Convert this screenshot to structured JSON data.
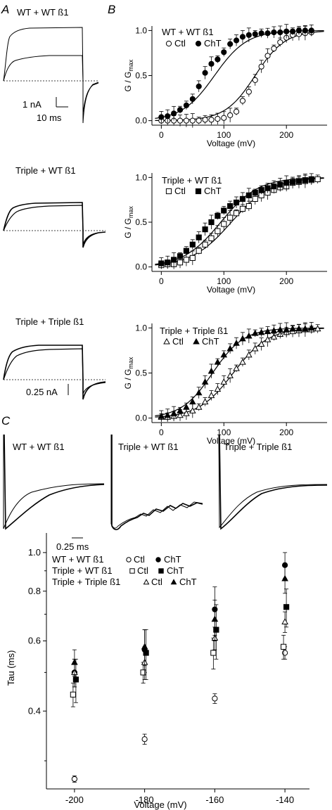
{
  "panel_labels": {
    "a": "A",
    "b": "B",
    "c": "C"
  },
  "traces_a": {
    "titles": [
      "WT + WT ß1",
      "Triple + WT ß1",
      "Triple + Triple ß1"
    ],
    "scale_current_1": "1 nA",
    "scale_time": "10 ms",
    "scale_current_2": "0.25 nA"
  },
  "traces_c": {
    "titles": [
      "WT + WT ß1",
      "Triple + WT ß1",
      "Triple + Triple ß1"
    ],
    "scale_time": "0.25 ms"
  },
  "legend_c": {
    "rows": [
      {
        "label": "WT + WT ß1",
        "ctl": "Ctl",
        "cht": "ChT"
      },
      {
        "label": "Triple + WT ß1",
        "ctl": "Ctl",
        "cht": "ChT"
      },
      {
        "label": "Triple + Triple ß1",
        "ctl": "Ctl",
        "cht": "ChT"
      }
    ]
  },
  "chart_data": [
    {
      "type": "scatter",
      "panel": "B1",
      "legend_title": "WT + WT ß1",
      "xlabel": "Voltage (mV)",
      "ylabel_main": "G / G",
      "ylabel_sub": "max",
      "xlim": [
        -15,
        265
      ],
      "ylim": [
        -0.05,
        1.05
      ],
      "xticks": [
        0,
        100,
        200
      ],
      "yticks": [
        0.0,
        0.5,
        1.0
      ],
      "marker": "circle",
      "series": [
        {
          "name": "Ctl",
          "fill": "open",
          "v_half": 150,
          "slope": 24,
          "x": [
            0,
            10,
            20,
            30,
            40,
            50,
            60,
            70,
            80,
            90,
            100,
            110,
            120,
            130,
            140,
            150,
            160,
            170,
            180,
            190,
            200,
            210,
            220,
            230,
            240
          ],
          "y": [
            0.0,
            0.0,
            0.0,
            0.0,
            0.0,
            0.0,
            0.0,
            0.01,
            0.01,
            0.02,
            0.03,
            0.06,
            0.1,
            0.22,
            0.32,
            0.45,
            0.6,
            0.72,
            0.8,
            0.87,
            0.92,
            0.95,
            0.96,
            0.97,
            0.98
          ]
        },
        {
          "name": "ChT",
          "fill": "filled",
          "v_half": 85,
          "slope": 26,
          "x": [
            0,
            10,
            20,
            30,
            40,
            50,
            60,
            70,
            80,
            90,
            100,
            110,
            120,
            130,
            140,
            150,
            160,
            170,
            180,
            190,
            200,
            210,
            220,
            230,
            240
          ],
          "y": [
            0.04,
            0.05,
            0.08,
            0.12,
            0.17,
            0.24,
            0.38,
            0.53,
            0.63,
            0.68,
            0.76,
            0.85,
            0.89,
            0.93,
            0.95,
            0.96,
            0.97,
            0.97,
            0.98,
            0.98,
            0.99,
            0.99,
            1.0,
            1.0,
            1.0
          ]
        }
      ]
    },
    {
      "type": "scatter",
      "panel": "B2",
      "legend_title": "Triple + WT ß1",
      "xlabel": "Voltage (mV)",
      "ylabel_main": "G / G",
      "ylabel_sub": "max",
      "xlim": [
        -15,
        265
      ],
      "ylim": [
        -0.05,
        1.05
      ],
      "xticks": [
        0,
        100,
        200
      ],
      "yticks": [
        0.0,
        0.5,
        1.0
      ],
      "marker": "square",
      "series": [
        {
          "name": "Ctl",
          "fill": "open",
          "v_half": 112,
          "slope": 32,
          "x": [
            0,
            10,
            20,
            30,
            40,
            50,
            60,
            70,
            80,
            90,
            100,
            110,
            120,
            130,
            140,
            150,
            160,
            170,
            180,
            190,
            200,
            210,
            220,
            230,
            240,
            250
          ],
          "y": [
            0.02,
            0.03,
            0.03,
            0.05,
            0.08,
            0.1,
            0.18,
            0.25,
            0.32,
            0.4,
            0.48,
            0.55,
            0.6,
            0.65,
            0.68,
            0.76,
            0.8,
            0.83,
            0.86,
            0.89,
            0.9,
            0.94,
            0.95,
            0.96,
            0.97,
            0.98
          ]
        },
        {
          "name": "ChT",
          "fill": "filled",
          "v_half": 95,
          "slope": 30,
          "x": [
            0,
            10,
            20,
            30,
            40,
            50,
            60,
            70,
            80,
            90,
            100,
            110,
            120,
            130,
            140,
            150,
            160,
            170,
            180,
            190,
            200,
            210,
            220,
            230,
            240
          ],
          "y": [
            0.04,
            0.05,
            0.08,
            0.12,
            0.18,
            0.25,
            0.33,
            0.42,
            0.5,
            0.57,
            0.63,
            0.68,
            0.72,
            0.76,
            0.8,
            0.83,
            0.86,
            0.88,
            0.9,
            0.92,
            0.94,
            0.95,
            0.96,
            0.97,
            0.98
          ]
        }
      ]
    },
    {
      "type": "scatter",
      "panel": "B3",
      "legend_title": "Triple + Triple ß1",
      "xlabel": "Voltage (mV)",
      "ylabel_main": "G / G",
      "ylabel_sub": "max",
      "xlim": [
        -15,
        265
      ],
      "ylim": [
        -0.05,
        1.05
      ],
      "xticks": [
        0,
        100,
        200
      ],
      "yticks": [
        0.0,
        0.5,
        1.0
      ],
      "marker": "triangle",
      "series": [
        {
          "name": "Ctl",
          "fill": "open",
          "v_half": 115,
          "slope": 28,
          "x": [
            0,
            10,
            20,
            30,
            40,
            50,
            60,
            70,
            80,
            90,
            100,
            110,
            120,
            130,
            140,
            150,
            160,
            170,
            180,
            190,
            200,
            210,
            220,
            230,
            240,
            250
          ],
          "y": [
            0.01,
            0.01,
            0.02,
            0.03,
            0.05,
            0.08,
            0.12,
            0.18,
            0.25,
            0.32,
            0.4,
            0.47,
            0.55,
            0.62,
            0.7,
            0.77,
            0.82,
            0.87,
            0.9,
            0.93,
            0.95,
            0.96,
            0.97,
            0.98,
            0.98,
            0.99
          ]
        },
        {
          "name": "ChT",
          "fill": "filled",
          "v_half": 82,
          "slope": 25,
          "x": [
            0,
            10,
            20,
            30,
            40,
            50,
            60,
            70,
            80,
            90,
            100,
            110,
            120,
            130,
            140,
            150,
            160,
            170,
            180,
            190,
            200,
            210,
            220,
            230,
            240
          ],
          "y": [
            0.02,
            0.03,
            0.05,
            0.08,
            0.12,
            0.18,
            0.28,
            0.4,
            0.52,
            0.62,
            0.7,
            0.77,
            0.83,
            0.88,
            0.91,
            0.94,
            0.95,
            0.96,
            0.97,
            0.98,
            0.98,
            0.99,
            0.99,
            0.99,
            1.0
          ]
        }
      ]
    },
    {
      "type": "scatter",
      "panel": "C-bottom",
      "xlabel": "Voltage (mV)",
      "ylabel": "Tau (ms)",
      "yscale": "log",
      "xlim": [
        -208,
        -133
      ],
      "ylim": [
        0.255,
        1.12
      ],
      "xticks": [
        -200,
        -180,
        -160,
        -140
      ],
      "yticks": [
        0.4,
        0.6,
        0.8,
        1.0
      ],
      "series": [
        {
          "name": "WT + WT ß1 Ctl",
          "marker": "circle",
          "fill": "open",
          "x": [
            -200,
            -180,
            -160,
            -140
          ],
          "y": [
            0.27,
            0.34,
            0.43,
            0.56
          ],
          "err": [
            0.005,
            0.01,
            0.012,
            0.02
          ],
          "dx": 0
        },
        {
          "name": "WT + WT ß1 ChT",
          "marker": "circle",
          "fill": "filled",
          "x": [
            -200,
            -180,
            -160,
            -140
          ],
          "y": [
            0.5,
            0.57,
            0.72,
            0.93
          ],
          "err": [
            0.04,
            0.07,
            0.1,
            0.07
          ],
          "dx": 0
        },
        {
          "name": "Triple + WT ß1 Ctl",
          "marker": "square",
          "fill": "open",
          "x": [
            -200,
            -180,
            -160,
            -140
          ],
          "y": [
            0.44,
            0.5,
            0.56,
            0.58
          ],
          "err": [
            0.03,
            0.03,
            0.05,
            0.04
          ],
          "dx": -1
        },
        {
          "name": "Triple + WT ß1 ChT",
          "marker": "square",
          "fill": "filled",
          "x": [
            -200,
            -180,
            -160,
            -140
          ],
          "y": [
            0.48,
            0.56,
            0.64,
            0.73
          ],
          "err": [
            0.06,
            0.08,
            0.1,
            0.08
          ],
          "dx": 1
        },
        {
          "name": "Triple + Triple ß1 Ctl",
          "marker": "triangle",
          "fill": "open",
          "x": [
            -200,
            -180,
            -160,
            -140
          ],
          "y": [
            0.5,
            0.53,
            0.61,
            0.67
          ],
          "err": [
            0.04,
            0.05,
            0.04,
            0.04
          ],
          "dx": 0
        },
        {
          "name": "Triple + Triple ß1 ChT",
          "marker": "triangle",
          "fill": "filled",
          "x": [
            -200,
            -180,
            -160,
            -140
          ],
          "y": [
            0.53,
            0.58,
            0.68,
            0.86
          ],
          "err": [
            0.04,
            0.06,
            0.08,
            0.07
          ],
          "dx": 0
        }
      ]
    }
  ]
}
